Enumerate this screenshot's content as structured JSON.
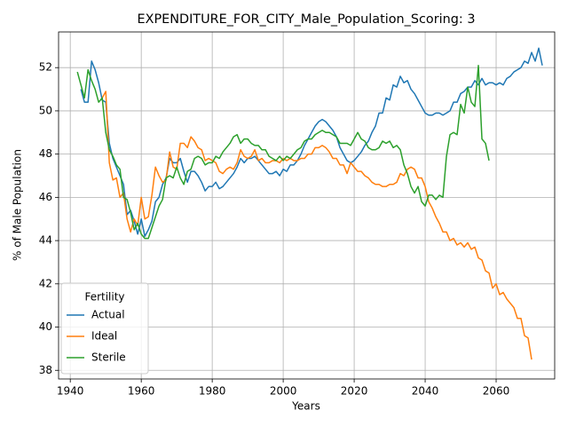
{
  "chart_data": {
    "type": "line",
    "title": "EXPENDITURE_FOR_CITY_Male_Population_Scoring: 3",
    "x_label": "Years",
    "y_label": "% of Male Population",
    "legend_title": "Fertility",
    "legend_position": "lower left",
    "grid": true,
    "xlim": [
      1936.7,
      2076.5
    ],
    "xticks": [
      1940,
      1960,
      1980,
      2000,
      2020,
      2040,
      2060
    ],
    "ylim": [
      37.6,
      53.65
    ],
    "yticks": [
      38,
      40,
      42,
      44,
      46,
      48,
      50,
      52
    ],
    "x": [
      1942,
      1943,
      1944,
      1945,
      1946,
      1947,
      1948,
      1949,
      1950,
      1951,
      1952,
      1953,
      1954,
      1955,
      1956,
      1957,
      1958,
      1959,
      1960,
      1961,
      1962,
      1963,
      1964,
      1965,
      1966,
      1967,
      1968,
      1969,
      1970,
      1971,
      1972,
      1973,
      1974,
      1975,
      1976,
      1977,
      1978,
      1979,
      1980,
      1981,
      1982,
      1983,
      1984,
      1985,
      1986,
      1987,
      1988,
      1989,
      1990,
      1991,
      1992,
      1993,
      1994,
      1995,
      1996,
      1997,
      1998,
      1999,
      2000,
      2001,
      2002,
      2003,
      2004,
      2005,
      2006,
      2007,
      2008,
      2009,
      2010,
      2011,
      2012,
      2013,
      2014,
      2015,
      2016,
      2017,
      2018,
      2019,
      2020,
      2021,
      2022,
      2023,
      2024,
      2025,
      2026,
      2027,
      2028,
      2029,
      2030,
      2031,
      2032,
      2033,
      2034,
      2035,
      2036,
      2037,
      2038,
      2039,
      2040,
      2041,
      2042,
      2043,
      2044,
      2045,
      2046,
      2047,
      2048,
      2049,
      2050,
      2051,
      2052,
      2053,
      2054,
      2055,
      2056,
      2057,
      2058,
      2059,
      2060,
      2061,
      2062,
      2063,
      2064,
      2065,
      2066,
      2067,
      2068,
      2069,
      2070,
      2071,
      2072,
      2073
    ],
    "series": [
      {
        "name": "Actual",
        "color": "#1f77b4",
        "values": [
          null,
          51.0,
          50.4,
          50.4,
          52.3,
          51.9,
          51.3,
          50.5,
          50.4,
          48.5,
          47.8,
          47.4,
          47.0,
          46.6,
          45.2,
          45.4,
          44.9,
          44.3,
          45.0,
          44.2,
          44.5,
          44.9,
          45.8,
          46.0,
          46.6,
          46.9,
          47.8,
          47.6,
          47.6,
          47.8,
          47.2,
          46.7,
          47.2,
          47.2,
          47.0,
          46.7,
          46.3,
          46.5,
          46.5,
          46.7,
          46.4,
          46.5,
          46.7,
          46.9,
          47.1,
          47.4,
          47.8,
          47.6,
          47.8,
          47.8,
          47.9,
          47.7,
          47.5,
          47.3,
          47.1,
          47.1,
          47.2,
          47.0,
          47.3,
          47.2,
          47.5,
          47.5,
          47.7,
          48.0,
          48.4,
          48.7,
          49.0,
          49.3,
          49.5,
          49.6,
          49.5,
          49.3,
          49.1,
          48.8,
          48.3,
          48.0,
          47.7,
          47.6,
          47.7,
          47.9,
          48.1,
          48.4,
          48.6,
          49.0,
          49.3,
          49.9,
          49.9,
          50.6,
          50.5,
          51.2,
          51.1,
          51.6,
          51.3,
          51.4,
          51.0,
          50.8,
          50.5,
          50.2,
          49.9,
          49.8,
          49.8,
          49.9,
          49.9,
          49.8,
          49.9,
          50.0,
          50.4,
          50.4,
          50.8,
          50.9,
          51.1,
          51.1,
          51.4,
          51.2,
          51.5,
          51.2,
          51.3,
          51.3,
          51.2,
          51.3,
          51.2,
          51.5,
          51.6,
          51.8,
          51.9,
          52.0,
          52.3,
          52.2,
          52.7,
          52.3,
          52.9,
          52.1
        ]
      },
      {
        "name": "Ideal",
        "color": "#ff7f0e",
        "values": [
          null,
          null,
          null,
          null,
          null,
          null,
          null,
          50.6,
          50.9,
          47.6,
          46.8,
          46.9,
          46.0,
          46.2,
          45.0,
          44.4,
          45.0,
          44.7,
          46.0,
          45.0,
          45.1,
          46.1,
          47.4,
          47.0,
          46.7,
          46.8,
          48.1,
          47.4,
          47.3,
          48.5,
          48.5,
          48.3,
          48.8,
          48.6,
          48.3,
          48.2,
          47.7,
          47.8,
          47.7,
          47.6,
          47.2,
          47.1,
          47.3,
          47.4,
          47.3,
          47.6,
          48.2,
          47.9,
          47.8,
          47.9,
          48.2,
          47.7,
          47.8,
          47.6,
          47.6,
          47.7,
          47.7,
          47.6,
          47.8,
          47.7,
          47.8,
          47.7,
          47.7,
          47.8,
          47.8,
          48.0,
          48.0,
          48.3,
          48.3,
          48.4,
          48.3,
          48.1,
          47.8,
          47.8,
          47.5,
          47.5,
          47.1,
          47.6,
          47.4,
          47.2,
          47.2,
          47.0,
          46.9,
          46.7,
          46.6,
          46.6,
          46.5,
          46.5,
          46.6,
          46.6,
          46.7,
          47.1,
          47.0,
          47.3,
          47.4,
          47.3,
          46.9,
          46.9,
          46.5,
          45.8,
          45.5,
          45.1,
          44.8,
          44.4,
          44.4,
          44.0,
          44.1,
          43.8,
          43.9,
          43.7,
          43.9,
          43.6,
          43.7,
          43.2,
          43.1,
          42.6,
          42.5,
          41.8,
          42.0,
          41.5,
          41.6,
          41.3,
          41.1,
          40.9,
          40.4,
          40.4,
          39.6,
          39.5,
          38.5,
          null,
          null,
          null
        ]
      },
      {
        "name": "Sterile",
        "color": "#2ca02c",
        "values": [
          51.8,
          51.2,
          50.6,
          51.9,
          51.4,
          51.0,
          50.4,
          50.6,
          49.0,
          48.2,
          47.9,
          47.5,
          47.3,
          46.0,
          45.9,
          45.3,
          44.5,
          44.8,
          44.3,
          44.1,
          44.1,
          44.6,
          45.1,
          45.6,
          45.9,
          46.9,
          47.0,
          46.9,
          47.4,
          46.9,
          46.6,
          47.2,
          47.3,
          47.8,
          47.9,
          47.8,
          47.5,
          47.6,
          47.6,
          47.9,
          47.8,
          48.1,
          48.3,
          48.5,
          48.8,
          48.9,
          48.5,
          48.7,
          48.7,
          48.5,
          48.4,
          48.4,
          48.2,
          48.2,
          47.9,
          47.8,
          47.7,
          47.9,
          47.7,
          47.9,
          47.8,
          48.0,
          48.2,
          48.3,
          48.6,
          48.7,
          48.7,
          48.9,
          49.0,
          49.1,
          49.0,
          49.0,
          48.9,
          48.8,
          48.5,
          48.5,
          48.5,
          48.4,
          48.7,
          49.0,
          48.7,
          48.6,
          48.3,
          48.2,
          48.2,
          48.3,
          48.6,
          48.5,
          48.6,
          48.3,
          48.4,
          48.2,
          47.5,
          47.1,
          46.5,
          46.2,
          46.5,
          45.8,
          45.6,
          46.1,
          46.1,
          45.9,
          46.1,
          46.0,
          47.9,
          48.9,
          49.0,
          48.9,
          50.3,
          49.9,
          51.1,
          50.4,
          50.2,
          52.1,
          48.7,
          48.5,
          47.7,
          null,
          null,
          null,
          null,
          null,
          null,
          null,
          null,
          null,
          null,
          null,
          null,
          null,
          null,
          null
        ]
      }
    ]
  }
}
